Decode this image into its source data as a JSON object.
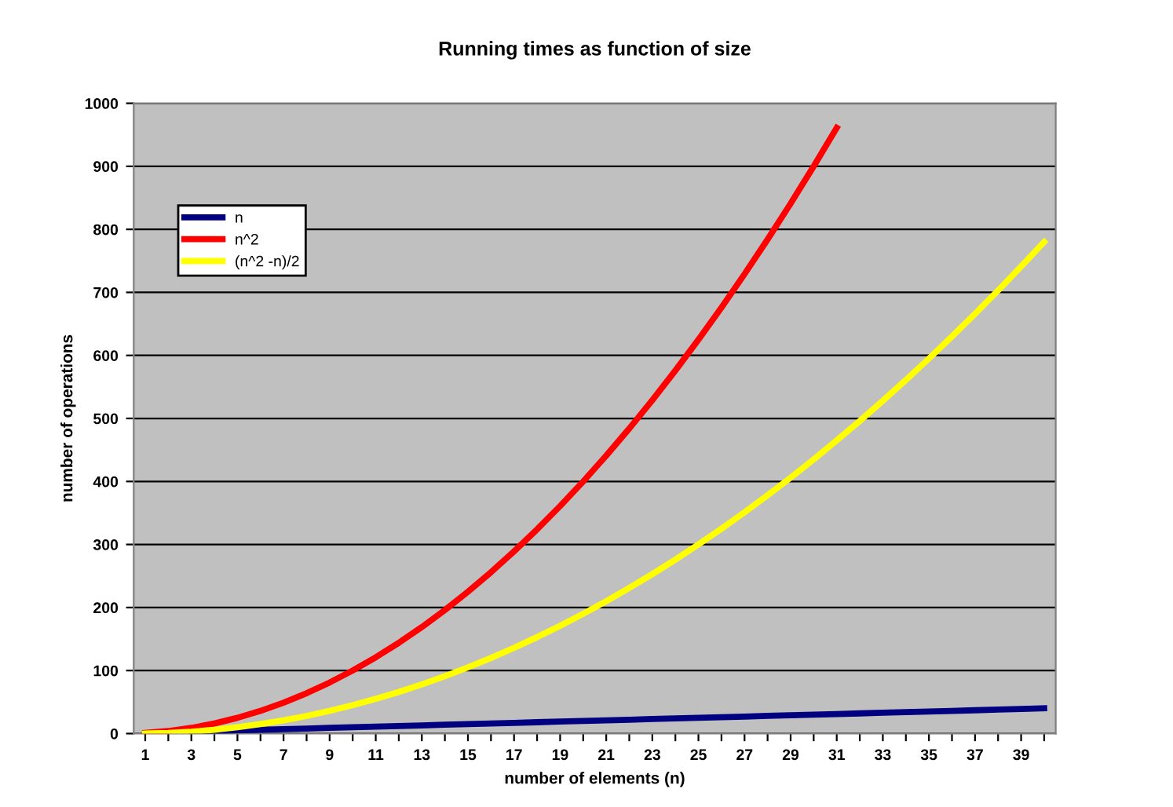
{
  "chart_data": {
    "type": "line",
    "title": "Running times as function of size",
    "xlabel": "number of elements (n)",
    "ylabel": "number of operations",
    "categories": [
      "1",
      null,
      "3",
      null,
      "5",
      null,
      "7",
      null,
      "9",
      null,
      "11",
      null,
      "13",
      null,
      "15",
      null,
      "17",
      null,
      "19",
      null,
      "21",
      null,
      "23",
      null,
      "25",
      null,
      "27",
      null,
      "29",
      null,
      "31",
      null,
      "33",
      null,
      "35",
      null,
      "37",
      null,
      "39",
      null
    ],
    "series": [
      {
        "name": "n",
        "color": "#000080",
        "values": [
          null,
          null,
          3,
          4,
          5,
          6,
          7,
          8,
          9,
          10,
          11,
          12,
          13,
          14,
          15,
          16,
          17,
          18,
          19,
          20,
          21,
          22,
          23,
          24,
          25,
          26,
          27,
          28,
          29,
          30,
          31,
          32,
          33,
          34,
          35,
          36,
          37,
          38,
          39,
          40
        ]
      },
      {
        "name": "n^2",
        "color": "#ff0000",
        "values": [
          1,
          4,
          9,
          16,
          25,
          36,
          49,
          64,
          81,
          100,
          121,
          144,
          169,
          196,
          225,
          256,
          289,
          324,
          361,
          400,
          441,
          484,
          529,
          576,
          625,
          676,
          729,
          784,
          841,
          900,
          961,
          null,
          null,
          null,
          null,
          null,
          null,
          null,
          null,
          null
        ]
      },
      {
        "name": "(n^2 -n)/2",
        "color": "#ffff00",
        "values": [
          0,
          1,
          3,
          6,
          10,
          15,
          21,
          28,
          36,
          45,
          55,
          66,
          78,
          91,
          105,
          120,
          136,
          153,
          171,
          190,
          210,
          231,
          253,
          276,
          300,
          325,
          351,
          378,
          406,
          435,
          465,
          496,
          528,
          561,
          595,
          630,
          666,
          703,
          741,
          780
        ]
      }
    ],
    "ylim": [
      0,
      1000
    ],
    "yticks": [
      0,
      100,
      200,
      300,
      400,
      500,
      600,
      700,
      800,
      900,
      1000
    ],
    "grid": "y",
    "legend": "top left",
    "marker": "none",
    "line_style": "solid"
  }
}
